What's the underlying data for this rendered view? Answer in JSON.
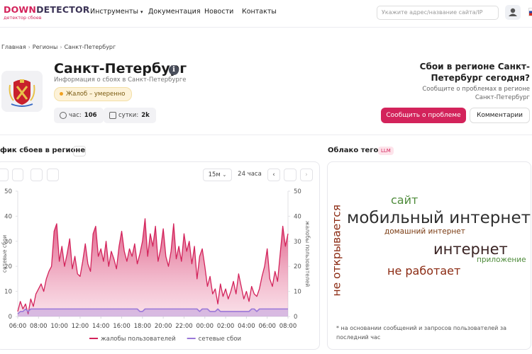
{
  "header": {
    "logo_accent": "DOWN",
    "logo_rest": "DETECTOR",
    "tagline": "детектор сбоев",
    "nav": [
      "Инструменты",
      "Документация",
      "Новости",
      "Контакты"
    ],
    "search_placeholder": "Укажите адрес/название сайта/IP"
  },
  "breadcrumbs": [
    "Главная",
    "Регионы",
    "Санкт-Петербург"
  ],
  "region": {
    "title": "Санкт-Петербург",
    "subtitle": "Информация о сбоях в Санкт-Петербурге",
    "badge": "Жалоб – умеренно",
    "stats": [
      {
        "label": "час:",
        "value": 106
      },
      {
        "label": "сутки:",
        "value": "2k"
      }
    ]
  },
  "report": {
    "title": "Сбои в регионе Санкт-Петербург сегодня?",
    "text": "Сообщите о проблемах в регионе Санкт-Петербург",
    "primary_button": "Сообщить о проблеме",
    "secondary_button": "Комментарии"
  },
  "chart_section": {
    "title": "фик сбоев в регионе",
    "interval": "15м",
    "range": "24 часа"
  },
  "chart_data": {
    "type": "area",
    "y_label": "сетевые сбои",
    "y2_label": "жалобы пользователей",
    "ylim": [
      0,
      50
    ],
    "yticks": [
      0,
      10,
      20,
      30,
      40,
      50
    ],
    "y2lim": [
      0,
      50
    ],
    "y2ticks": [
      0,
      10,
      20,
      30,
      40,
      50
    ],
    "xlim": [
      0,
      104
    ],
    "xticks": [
      {
        "value": 0,
        "label": "06:00"
      },
      {
        "value": 8,
        "label": "08:00"
      },
      {
        "value": 16,
        "label": "10:00"
      },
      {
        "value": 24,
        "label": "12:00"
      },
      {
        "value": 32,
        "label": "14:00"
      },
      {
        "value": 40,
        "label": "16:00"
      },
      {
        "value": 48,
        "label": "18:00"
      },
      {
        "value": 56,
        "label": "20:00"
      },
      {
        "value": 64,
        "label": "22:00"
      },
      {
        "value": 72,
        "label": "00:00"
      },
      {
        "value": 80,
        "label": "02:00"
      },
      {
        "value": 88,
        "label": "04:00"
      },
      {
        "value": 96,
        "label": "06:00"
      },
      {
        "value": 104,
        "label": "08:00"
      }
    ],
    "grid": false,
    "legend": "bottom",
    "series": [
      {
        "name": "жалобы пользователей",
        "color": "#d3235b",
        "axis": "y2",
        "values": [
          2,
          6,
          3,
          5,
          1,
          7,
          4,
          9,
          11,
          13,
          10,
          15,
          18,
          20,
          34,
          37,
          22,
          28,
          20,
          25,
          31,
          19,
          24,
          17,
          16,
          22,
          29,
          21,
          18,
          33,
          36,
          24,
          27,
          22,
          30,
          20,
          26,
          23,
          19,
          28,
          34,
          26,
          22,
          27,
          24,
          29,
          21,
          25,
          30,
          39,
          24,
          33,
          28,
          36,
          22,
          27,
          35,
          24,
          20,
          26,
          37,
          23,
          28,
          22,
          33,
          26,
          30,
          21,
          28,
          15,
          24,
          27,
          20,
          12,
          16,
          9,
          11,
          5,
          13,
          8,
          11,
          7,
          10,
          14,
          9,
          17,
          12,
          7,
          10,
          6,
          12,
          9,
          8,
          11,
          16,
          20,
          27,
          15,
          12,
          18,
          14,
          25,
          36,
          28,
          33
        ]
      },
      {
        "name": "сетевые сбои",
        "color": "#9a78d8",
        "values": [
          1,
          2,
          2,
          3,
          2,
          3,
          3,
          3,
          3,
          3,
          3,
          3,
          3,
          3,
          3,
          3,
          3,
          3,
          3,
          3,
          3,
          3,
          3,
          3,
          3,
          3,
          3,
          3,
          3,
          3,
          3,
          3,
          3,
          3,
          3,
          3,
          3,
          3,
          3,
          3,
          3,
          3,
          3,
          3,
          3,
          3,
          3,
          2,
          2,
          3,
          3,
          3,
          3,
          3,
          3,
          3,
          3,
          3,
          3,
          3,
          3,
          3,
          3,
          3,
          3,
          3,
          3,
          3,
          3,
          3,
          2,
          3,
          3,
          3,
          2,
          2,
          2,
          3,
          2,
          2,
          2,
          2,
          2,
          2,
          2,
          2,
          2,
          2,
          2,
          2,
          3,
          3,
          2,
          3,
          3,
          3,
          3,
          3,
          3,
          3,
          3,
          3,
          3,
          3,
          3
        ]
      }
    ]
  },
  "tag_cloud": {
    "title": "Облако тегов",
    "badge": "LLM",
    "tags": [
      "сайт",
      "мобильный интернет",
      "домашний интернет",
      "интернет",
      "приложение",
      "не работает",
      "не открывается"
    ],
    "note": "* на основании сообщений и запросов пользователей за последний час"
  }
}
